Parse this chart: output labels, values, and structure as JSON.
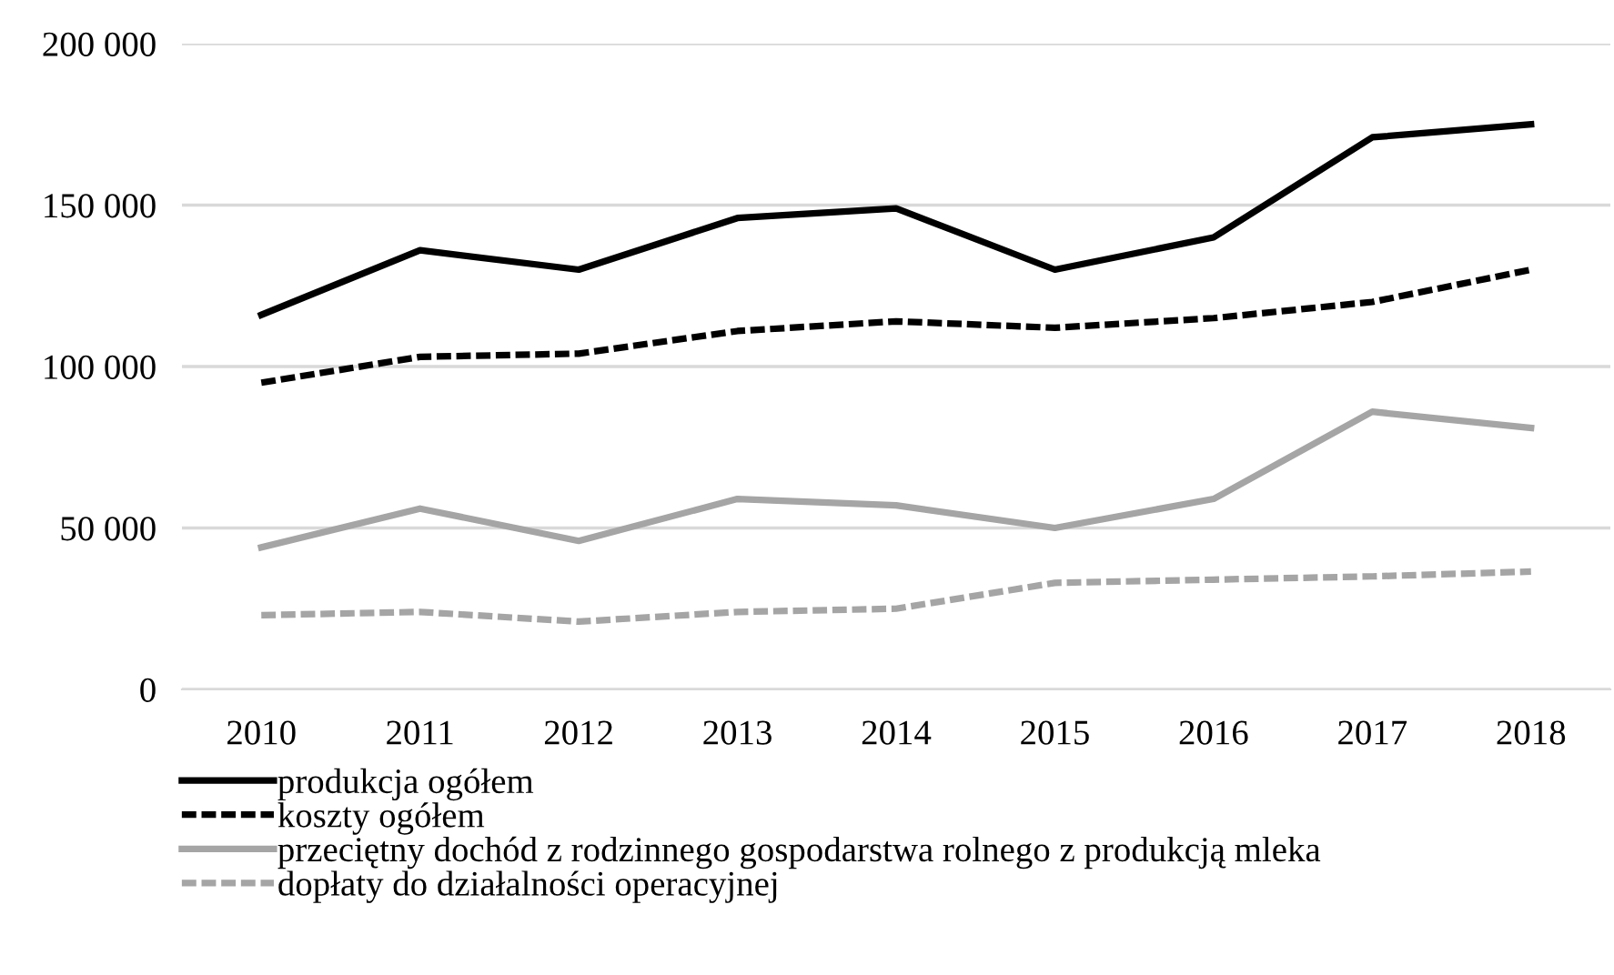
{
  "chart_data": {
    "type": "line",
    "categories": [
      "2010",
      "2011",
      "2012",
      "2013",
      "2014",
      "2015",
      "2016",
      "2017",
      "2018"
    ],
    "series": [
      {
        "name": "produkcja ogółem",
        "color": "#000000",
        "line_style": "solid",
        "values": [
          116000,
          136000,
          130000,
          146000,
          149000,
          130000,
          140000,
          171000,
          175000
        ]
      },
      {
        "name": "koszty ogółem",
        "color": "#000000",
        "line_style": "dashed",
        "values": [
          95000,
          103000,
          104000,
          111000,
          114000,
          112000,
          115000,
          120000,
          130000
        ]
      },
      {
        "name": "przeciętny dochód z rodzinnego gospodarstwa rolnego z produkcją mleka",
        "color": "#a5a5a5",
        "line_style": "solid",
        "values": [
          44000,
          56000,
          46000,
          59000,
          57000,
          50000,
          59000,
          86000,
          81000
        ]
      },
      {
        "name": "dopłaty do działalności operacyjnej",
        "color": "#a5a5a5",
        "line_style": "dashed",
        "values": [
          23000,
          24000,
          21000,
          24000,
          25000,
          33000,
          34000,
          35000,
          36500
        ]
      }
    ],
    "ylim": [
      0,
      200000
    ],
    "yticks": [
      {
        "value": 0,
        "label": "0"
      },
      {
        "value": 50000,
        "label": "50 000"
      },
      {
        "value": 100000,
        "label": "100 000"
      },
      {
        "value": 150000,
        "label": "150 000"
      },
      {
        "value": 200000,
        "label": "200 000"
      }
    ],
    "grid": "y",
    "legend": "bottom",
    "marker": "none"
  }
}
